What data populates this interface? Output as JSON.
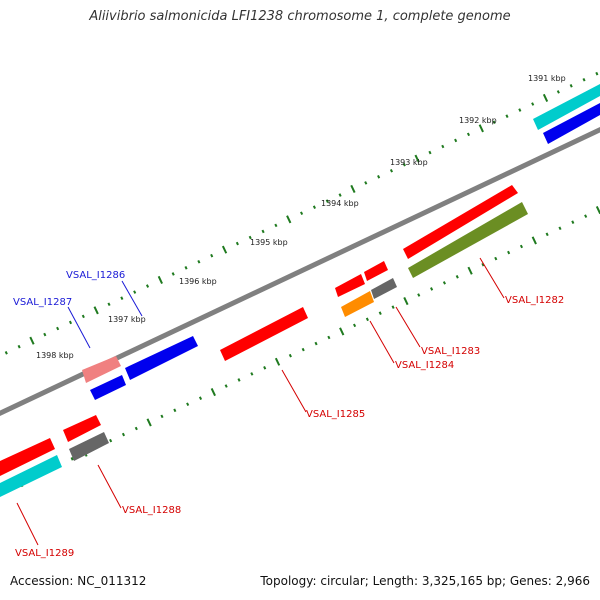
{
  "title": "Aliivibrio salmonicida LFI1238 chromosome 1, complete genome",
  "accession": "Accession: NC_011312",
  "topology": "Topology: circular; Length: 3,325,165 bp; Genes: 2,966",
  "kbp_labels": [
    "1391 kbp",
    "1392 kbp",
    "1393 kbp",
    "1394 kbp",
    "1395 kbp",
    "1396 kbp",
    "1397 kbp",
    "1398 kbp"
  ],
  "gene_labels": {
    "vsal_i1282": "VSAL_I1282",
    "vsal_i1283": "VSAL_I1283",
    "vsal_i1284": "VSAL_I1284",
    "vsal_i1285": "VSAL_I1285",
    "vsal_i1286": "VSAL_I1286",
    "vsal_i1287": "VSAL_I1287",
    "vsal_i1288": "VSAL_I1288",
    "vsal_i1289": "VSAL_I1289"
  },
  "colors": {
    "backbone": "#808080",
    "tick": "#1f7a1f",
    "red": "#ff0000",
    "blue": "#0000ee",
    "cyan": "#00cccc",
    "olive": "#6b8e23",
    "orange": "#ff8c00",
    "gray": "#666666",
    "pink": "#f08080"
  }
}
